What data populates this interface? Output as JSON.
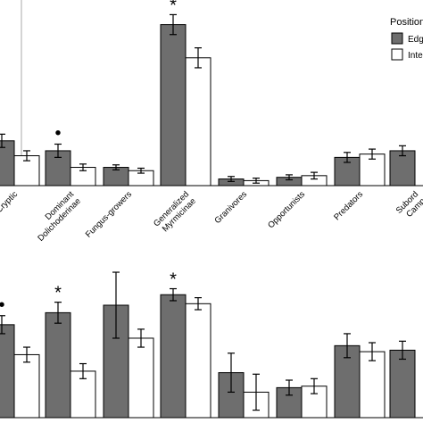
{
  "legend": {
    "title": "Position",
    "items": [
      {
        "label": "Edg",
        "color": "#6e6e6e"
      },
      {
        "label": "Inte",
        "color": "#ffffff"
      }
    ],
    "placement": "top-right"
  },
  "colors": {
    "edge": "#6e6e6e",
    "interior": "#ffffff",
    "stroke": "#000000"
  },
  "chart_data": [
    {
      "type": "bar",
      "panel": "top",
      "title": "",
      "xlabel": "",
      "ylabel": "",
      "ylim": [
        0,
        100
      ],
      "categories": [
        "Cryptic",
        "Dominant Dolichoderinae",
        "Fungus-growers",
        "Generalized Myrmicinae",
        "Granivores",
        "Opportunists",
        "Predators",
        "Subordinate Camponotini"
      ],
      "tick_labels": [
        [
          "Cryptic"
        ],
        [
          "Dominant",
          "Dolichoderinae"
        ],
        [
          "Fungus-growers"
        ],
        [
          "Generalized",
          "Myrmicinae"
        ],
        [
          "Granivores"
        ],
        [
          "Opportunists"
        ],
        [
          "Predators"
        ],
        [
          "Subord",
          "Camp"
        ]
      ],
      "series": [
        {
          "name": "Edg",
          "values": [
            27,
            21,
            11,
            97,
            4,
            5,
            17,
            21
          ],
          "errors": [
            4,
            4,
            1.5,
            6,
            1.5,
            1.5,
            3,
            3
          ]
        },
        {
          "name": "Inte",
          "values": [
            18,
            11,
            9,
            77,
            3,
            6,
            19,
            0
          ],
          "errors": [
            3,
            2,
            1.5,
            6,
            1.5,
            2,
            3,
            0
          ]
        }
      ],
      "annotations": [
        {
          "category": "Dominant Dolichoderinae",
          "symbol": "•"
        },
        {
          "category": "Generalized Myrmicinae",
          "symbol": "*"
        }
      ]
    },
    {
      "type": "bar",
      "panel": "bottom",
      "title": "",
      "xlabel": "",
      "ylabel": "",
      "ylim": [
        0,
        100
      ],
      "categories": [
        "Cryptic",
        "Dominant Dolichoderinae",
        "Fungus-growers",
        "Generalized Myrmicinae",
        "Granivores",
        "Opportunists",
        "Predators",
        "Subordinate Camponotini"
      ],
      "series": [
        {
          "name": "Edg",
          "values": [
            62,
            70,
            75,
            82,
            30,
            20,
            48,
            45
          ],
          "errors": [
            6,
            7,
            22,
            4,
            13,
            5,
            8,
            6
          ]
        },
        {
          "name": "Inte",
          "values": [
            42,
            31,
            53,
            76,
            17,
            21,
            44,
            0
          ],
          "errors": [
            5,
            5,
            6,
            4,
            12,
            5,
            6,
            0
          ]
        }
      ],
      "annotations": [
        {
          "category": "Cryptic",
          "symbol": "•"
        },
        {
          "category": "Dominant Dolichoderinae",
          "symbol": "*"
        },
        {
          "category": "Generalized Myrmicinae",
          "symbol": "*"
        }
      ]
    }
  ]
}
